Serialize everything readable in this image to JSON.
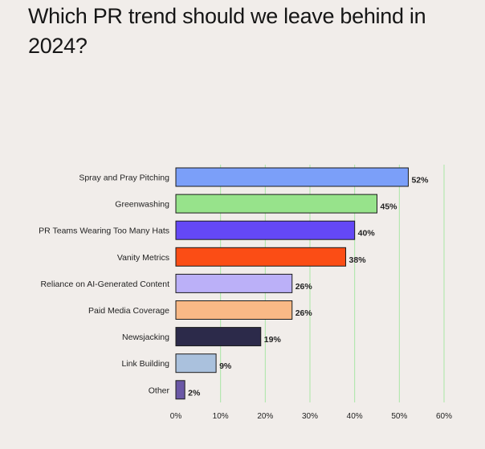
{
  "page": {
    "title": "Which PR trend should we leave behind in 2024?"
  },
  "chart_data": {
    "type": "bar",
    "orientation": "horizontal",
    "title": "Which PR trend should we leave behind in 2024?",
    "xlabel": "",
    "ylabel": "",
    "xlim": [
      0,
      60
    ],
    "grid": true,
    "tick_values": [
      0,
      10,
      20,
      30,
      40,
      50,
      60
    ],
    "tick_labels": [
      "0%",
      "10%",
      "20%",
      "30%",
      "40%",
      "50%",
      "60%"
    ],
    "categories": [
      "Spray and Pray Pitching",
      "Greenwashing",
      "PR Teams Wearing Too Many Hats",
      "Vanity Metrics",
      "Reliance on AI-Generated Content",
      "Paid Media Coverage",
      "Newsjacking",
      "Link Building",
      "Other"
    ],
    "values": [
      52,
      45,
      40,
      38,
      26,
      26,
      19,
      9,
      2
    ],
    "value_labels": [
      "52%",
      "45%",
      "40%",
      "38%",
      "26%",
      "26%",
      "19%",
      "9%",
      "2%"
    ],
    "colors": [
      "#7b9ff9",
      "#97e38b",
      "#6448f6",
      "#fb4d15",
      "#bbb0f8",
      "#f9b986",
      "#2c2a4a",
      "#aac1dd",
      "#6b58a6"
    ],
    "grid_color": "#a9e6a4"
  }
}
